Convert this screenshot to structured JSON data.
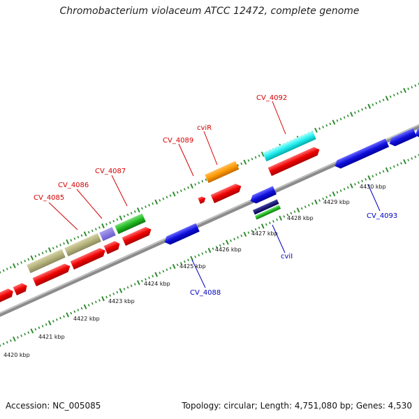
{
  "title": "Chromobacterium violaceum ATCC 12472, complete genome",
  "footer": {
    "accession": "Accession: NC_005085",
    "summary": "Topology: circular; Length: 4,751,080 bp; Genes: 4,530"
  },
  "colors": {
    "backbone": "#8c8c8c",
    "tick_outer": "#2e8b2e",
    "forward_gene": "#ee0000",
    "reverse_gene": "#1010dd",
    "label_forward": "#d40000",
    "label_reverse": "#0000c0"
  },
  "scale_labels": [
    "4420 kbp",
    "4421 kbp",
    "4422 kbp",
    "4423 kbp",
    "4424 kbp",
    "4425 kbp",
    "4426 kbp",
    "4427 kbp",
    "4428 kbp",
    "4429 kbp",
    "4430 kbp"
  ],
  "gene_labels": {
    "forward": [
      "CV_4085",
      "CV_4086",
      "CV_4087",
      "CV_4089",
      "cviR",
      "CV_4092"
    ],
    "reverse": [
      "CV_4088",
      "cviI",
      "CV_4093"
    ]
  }
}
